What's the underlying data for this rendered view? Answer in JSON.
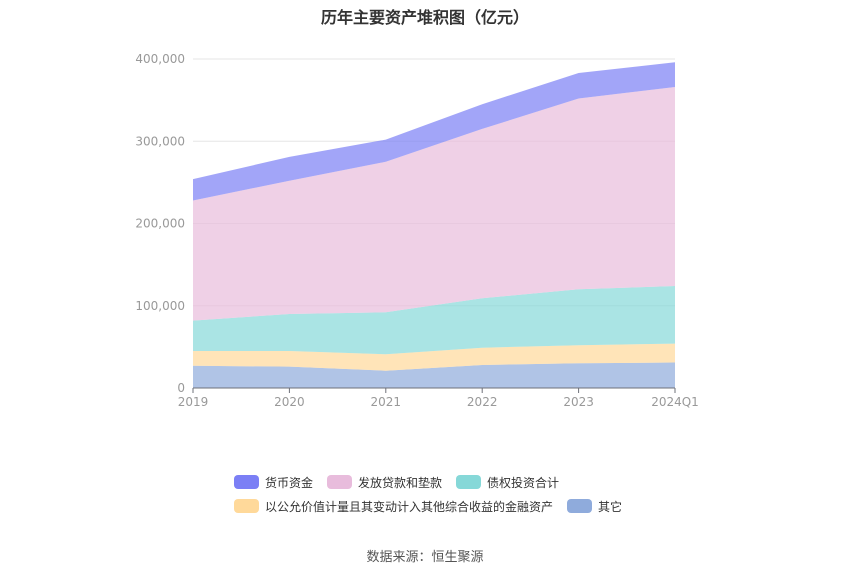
{
  "chart_data": {
    "type": "area",
    "stacked": true,
    "title": "历年主要资产堆积图（亿元）",
    "categories": [
      "2019",
      "2020",
      "2021",
      "2022",
      "2023",
      "2024Q1"
    ],
    "ylim": [
      0,
      400000
    ],
    "yticks": [
      "0",
      "100,000",
      "200,000",
      "300,000",
      "400,000"
    ],
    "yticks_values": [
      0,
      100000,
      200000,
      300000,
      400000
    ],
    "grid": true,
    "legend_position": "bottom",
    "series": [
      {
        "name": "其它",
        "color": "#8fabdc",
        "values": [
          27000,
          26000,
          21000,
          28000,
          30000,
          31000
        ]
      },
      {
        "name": "以公允价值计量且其变动计入其他综合收益的金融资产",
        "color": "#ffd99a",
        "values": [
          18000,
          19000,
          20000,
          21000,
          22000,
          23000
        ]
      },
      {
        "name": "债权投资合计",
        "color": "#86d8d8",
        "values": [
          37000,
          45000,
          51000,
          60000,
          68000,
          70000
        ]
      },
      {
        "name": "发放贷款和垫款",
        "color": "#e8bcdc",
        "values": [
          146000,
          162000,
          183000,
          206000,
          232000,
          242000
        ]
      },
      {
        "name": "货币资金",
        "color": "#7b7ff5",
        "values": [
          26000,
          29000,
          27000,
          30000,
          31000,
          30000
        ]
      }
    ],
    "legend_order": [
      "货币资金",
      "发放贷款和垫款",
      "债权投资合计",
      "以公允价值计量且其变动计入其他综合收益的金融资产",
      "其它"
    ]
  },
  "footer": {
    "source": "数据来源：恒生聚源"
  }
}
